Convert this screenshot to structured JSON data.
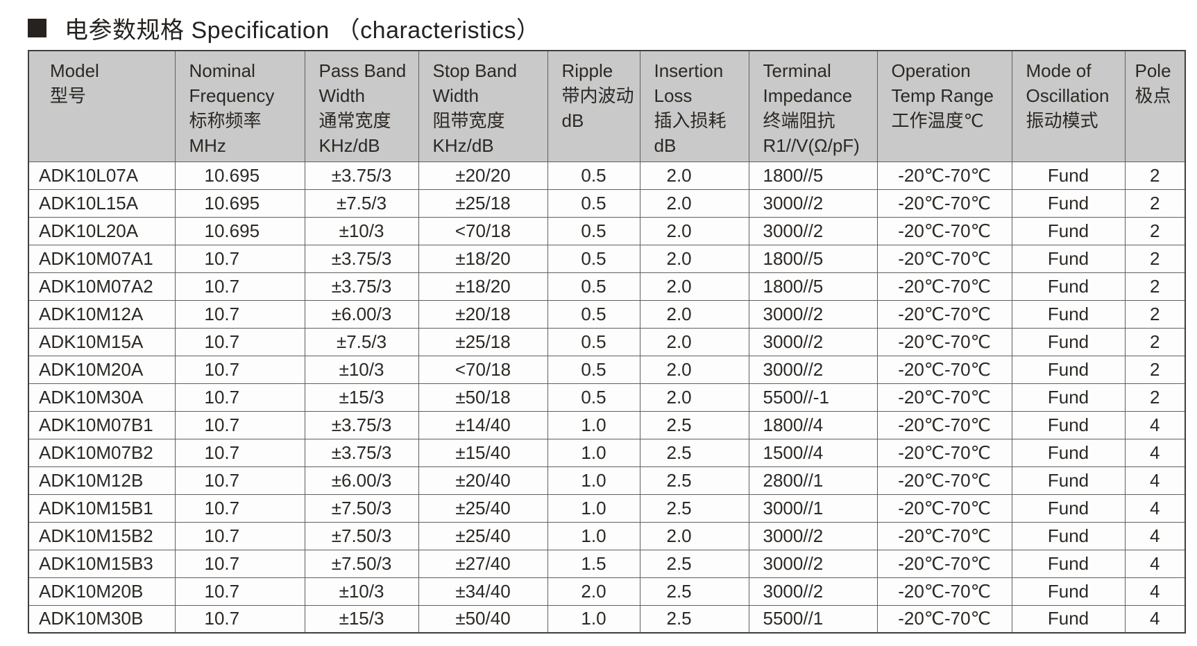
{
  "title": {
    "bullet": "■",
    "text": "电参数规格 Specification （characteristics）"
  },
  "table": {
    "columns": [
      {
        "id": "model",
        "lines": [
          "Model",
          "型号"
        ]
      },
      {
        "id": "nominal-frequency",
        "lines": [
          "Nominal",
          "Frequency",
          "标称频率",
          "MHz"
        ]
      },
      {
        "id": "pass-band-width",
        "lines": [
          "Pass Band",
          "Width",
          "通常宽度",
          "KHz/dB"
        ]
      },
      {
        "id": "stop-band-width",
        "lines": [
          "Stop Band",
          "Width",
          "阻带宽度",
          "KHz/dB"
        ]
      },
      {
        "id": "ripple",
        "lines": [
          "Ripple",
          "带内波动",
          "dB"
        ]
      },
      {
        "id": "insertion-loss",
        "lines": [
          "Insertion",
          "Loss",
          "插入损耗",
          "dB"
        ]
      },
      {
        "id": "terminal-impedance",
        "lines": [
          "Terminal",
          "Impedance",
          "终端阻抗",
          "R1//V(Ω/pF)"
        ]
      },
      {
        "id": "operation-temp-range",
        "lines": [
          "Operation",
          "Temp Range",
          "工作温度℃"
        ]
      },
      {
        "id": "mode-of-oscillation",
        "lines": [
          "Mode of",
          "Oscillation",
          "振动模式"
        ]
      },
      {
        "id": "pole",
        "lines": [
          "Pole",
          "极点"
        ]
      }
    ],
    "rows": [
      [
        "ADK10L07A",
        "10.695",
        "±3.75/3",
        "±20/20",
        "0.5",
        "2.0",
        "1800//5",
        "-20℃-70℃",
        "Fund",
        "2"
      ],
      [
        "ADK10L15A",
        "10.695",
        "±7.5/3",
        "±25/18",
        "0.5",
        "2.0",
        "3000//2",
        "-20℃-70℃",
        "Fund",
        "2"
      ],
      [
        "ADK10L20A",
        "10.695",
        "±10/3",
        "<70/18",
        "0.5",
        "2.0",
        "3000//2",
        "-20℃-70℃",
        "Fund",
        "2"
      ],
      [
        "ADK10M07A1",
        "10.7",
        "±3.75/3",
        "±18/20",
        "0.5",
        "2.0",
        "1800//5",
        "-20℃-70℃",
        "Fund",
        "2"
      ],
      [
        "ADK10M07A2",
        "10.7",
        "±3.75/3",
        "±18/20",
        "0.5",
        "2.0",
        "1800//5",
        "-20℃-70℃",
        "Fund",
        "2"
      ],
      [
        "ADK10M12A",
        "10.7",
        "±6.00/3",
        "±20/18",
        "0.5",
        "2.0",
        "3000//2",
        "-20℃-70℃",
        "Fund",
        "2"
      ],
      [
        "ADK10M15A",
        "10.7",
        "±7.5/3",
        "±25/18",
        "0.5",
        "2.0",
        "3000//2",
        "-20℃-70℃",
        "Fund",
        "2"
      ],
      [
        "ADK10M20A",
        "10.7",
        "±10/3",
        "<70/18",
        "0.5",
        "2.0",
        "3000//2",
        "-20℃-70℃",
        "Fund",
        "2"
      ],
      [
        "ADK10M30A",
        "10.7",
        "±15/3",
        "±50/18",
        "0.5",
        "2.0",
        "5500//-1",
        "-20℃-70℃",
        "Fund",
        "2"
      ],
      [
        "ADK10M07B1",
        "10.7",
        "±3.75/3",
        "±14/40",
        "1.0",
        "2.5",
        "1800//4",
        "-20℃-70℃",
        "Fund",
        "4"
      ],
      [
        "ADK10M07B2",
        "10.7",
        "±3.75/3",
        "±15/40",
        "1.0",
        "2.5",
        "1500//4",
        "-20℃-70℃",
        "Fund",
        "4"
      ],
      [
        "ADK10M12B",
        "10.7",
        "±6.00/3",
        "±20/40",
        "1.0",
        "2.5",
        "2800//1",
        "-20℃-70℃",
        "Fund",
        "4"
      ],
      [
        "ADK10M15B1",
        "10.7",
        "±7.50/3",
        "±25/40",
        "1.0",
        "2.5",
        "3000//1",
        "-20℃-70℃",
        "Fund",
        "4"
      ],
      [
        "ADK10M15B2",
        "10.7",
        "±7.50/3",
        "±25/40",
        "1.0",
        "2.0",
        "3000//2",
        "-20℃-70℃",
        "Fund",
        "4"
      ],
      [
        "ADK10M15B3",
        "10.7",
        "±7.50/3",
        "±27/40",
        "1.5",
        "2.5",
        "3000//2",
        "-20℃-70℃",
        "Fund",
        "4"
      ],
      [
        "ADK10M20B",
        "10.7",
        "±10/3",
        "±34/40",
        "2.0",
        "2.5",
        "3000//2",
        "-20℃-70℃",
        "Fund",
        "4"
      ],
      [
        "ADK10M30B",
        "10.7",
        "±15/3",
        "±50/40",
        "1.0",
        "2.5",
        "5500//1",
        "-20℃-70℃",
        "Fund",
        "4"
      ]
    ]
  },
  "colors": {
    "header_bg": "#c9c9c9",
    "body_bg": "#fdfdfd",
    "border": "#5f5f5f",
    "text": "#2c2824"
  }
}
